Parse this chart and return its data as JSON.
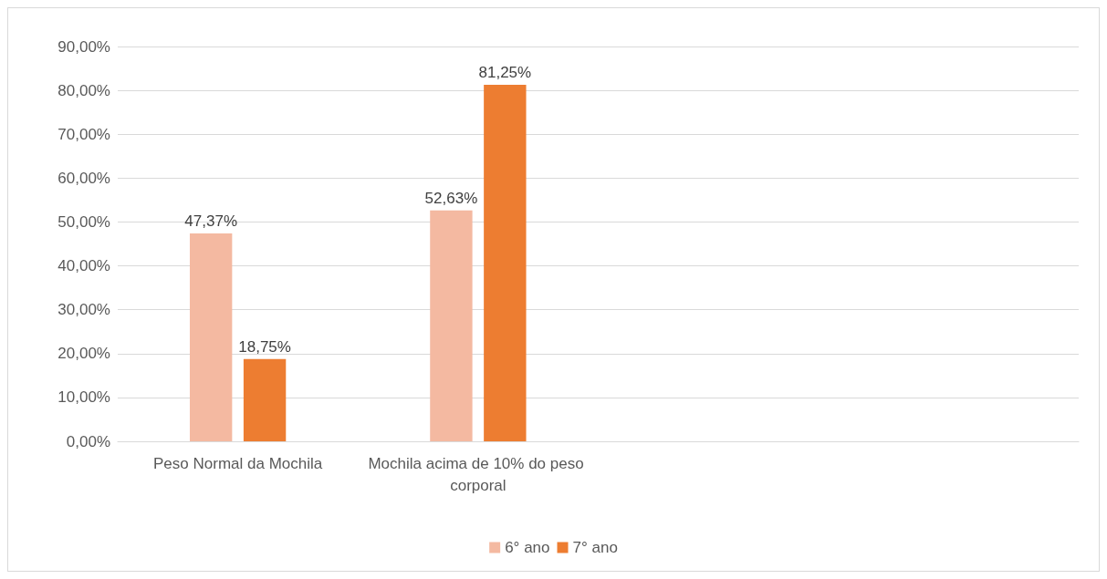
{
  "chart_data": {
    "type": "bar",
    "categories": [
      "Peso Normal da Mochila",
      "Mochila acima de 10% do peso corporal",
      null,
      null
    ],
    "series": [
      {
        "name": "6° ano",
        "color": "#f4b9a1",
        "values": [
          47.37,
          52.63,
          null,
          null
        ],
        "value_labels": [
          "47,37%",
          "52,63%",
          null,
          null
        ]
      },
      {
        "name": "7° ano",
        "color": "#ed7d31",
        "values": [
          18.75,
          81.25,
          null,
          null
        ],
        "value_labels": [
          "18,75%",
          "81,25%",
          null,
          null
        ]
      }
    ],
    "ylim": [
      0,
      90
    ],
    "yticks": [
      {
        "value": 0,
        "label": "0,00%"
      },
      {
        "value": 10,
        "label": "10,00%"
      },
      {
        "value": 20,
        "label": "20,00%"
      },
      {
        "value": 30,
        "label": "30,00%"
      },
      {
        "value": 40,
        "label": "40,00%"
      },
      {
        "value": 50,
        "label": "50,00%"
      },
      {
        "value": 60,
        "label": "60,00%"
      },
      {
        "value": 70,
        "label": "70,00%"
      },
      {
        "value": 80,
        "label": "80,00%"
      },
      {
        "value": 90,
        "label": "90,00%"
      }
    ],
    "grid": "y",
    "legend": "bottom"
  }
}
